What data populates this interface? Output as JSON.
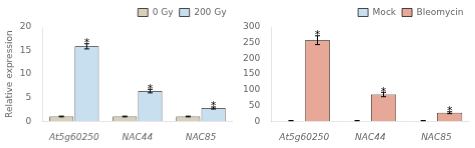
{
  "chart_data": [
    {
      "type": "bar",
      "categories": [
        "At5g60250",
        "NAC44",
        "NAC85"
      ],
      "series": [
        {
          "name": "0 Gy",
          "color": "#d8d0b8",
          "values": [
            1.0,
            1.0,
            1.0
          ],
          "errors": [
            0.08,
            0.08,
            0.08
          ]
        },
        {
          "name": "200 Gy",
          "color": "#c8dff0",
          "values": [
            15.9,
            6.4,
            2.8
          ],
          "errors": [
            0.55,
            0.38,
            0.22
          ]
        }
      ],
      "ylabel": "Relative expression",
      "ylim": [
        0,
        20
      ],
      "yticks": [
        0,
        5,
        10,
        15,
        20
      ],
      "grid": false,
      "legend": "upper right",
      "annotations": [
        {
          "text": "*",
          "x": "At5g60250",
          "series": "200 Gy"
        },
        {
          "text": "*",
          "x": "NAC44",
          "series": "200 Gy"
        },
        {
          "text": "*",
          "x": "NAC85",
          "series": "200 Gy"
        }
      ]
    },
    {
      "type": "bar",
      "categories": [
        "At5g60250",
        "NAC44",
        "NAC85"
      ],
      "series": [
        {
          "name": "Mock",
          "color": "#c8dff0",
          "values": [
            1.0,
            1.0,
            1.0
          ],
          "errors": [
            1.0,
            1.0,
            1.0
          ]
        },
        {
          "name": "Bleomycin",
          "color": "#e8a898",
          "values": [
            258,
            85,
            27
          ],
          "errors": [
            14,
            7,
            3
          ]
        }
      ],
      "ylim": [
        0,
        300
      ],
      "yticks": [
        0,
        50,
        100,
        150,
        200,
        250,
        300
      ],
      "grid": false,
      "legend": "upper right",
      "annotations": [
        {
          "text": "*",
          "x": "At5g60250",
          "series": "Bleomycin"
        },
        {
          "text": "*",
          "x": "NAC44",
          "series": "Bleomycin"
        },
        {
          "text": "*",
          "x": "NAC85",
          "series": "Bleomycin"
        }
      ]
    }
  ]
}
